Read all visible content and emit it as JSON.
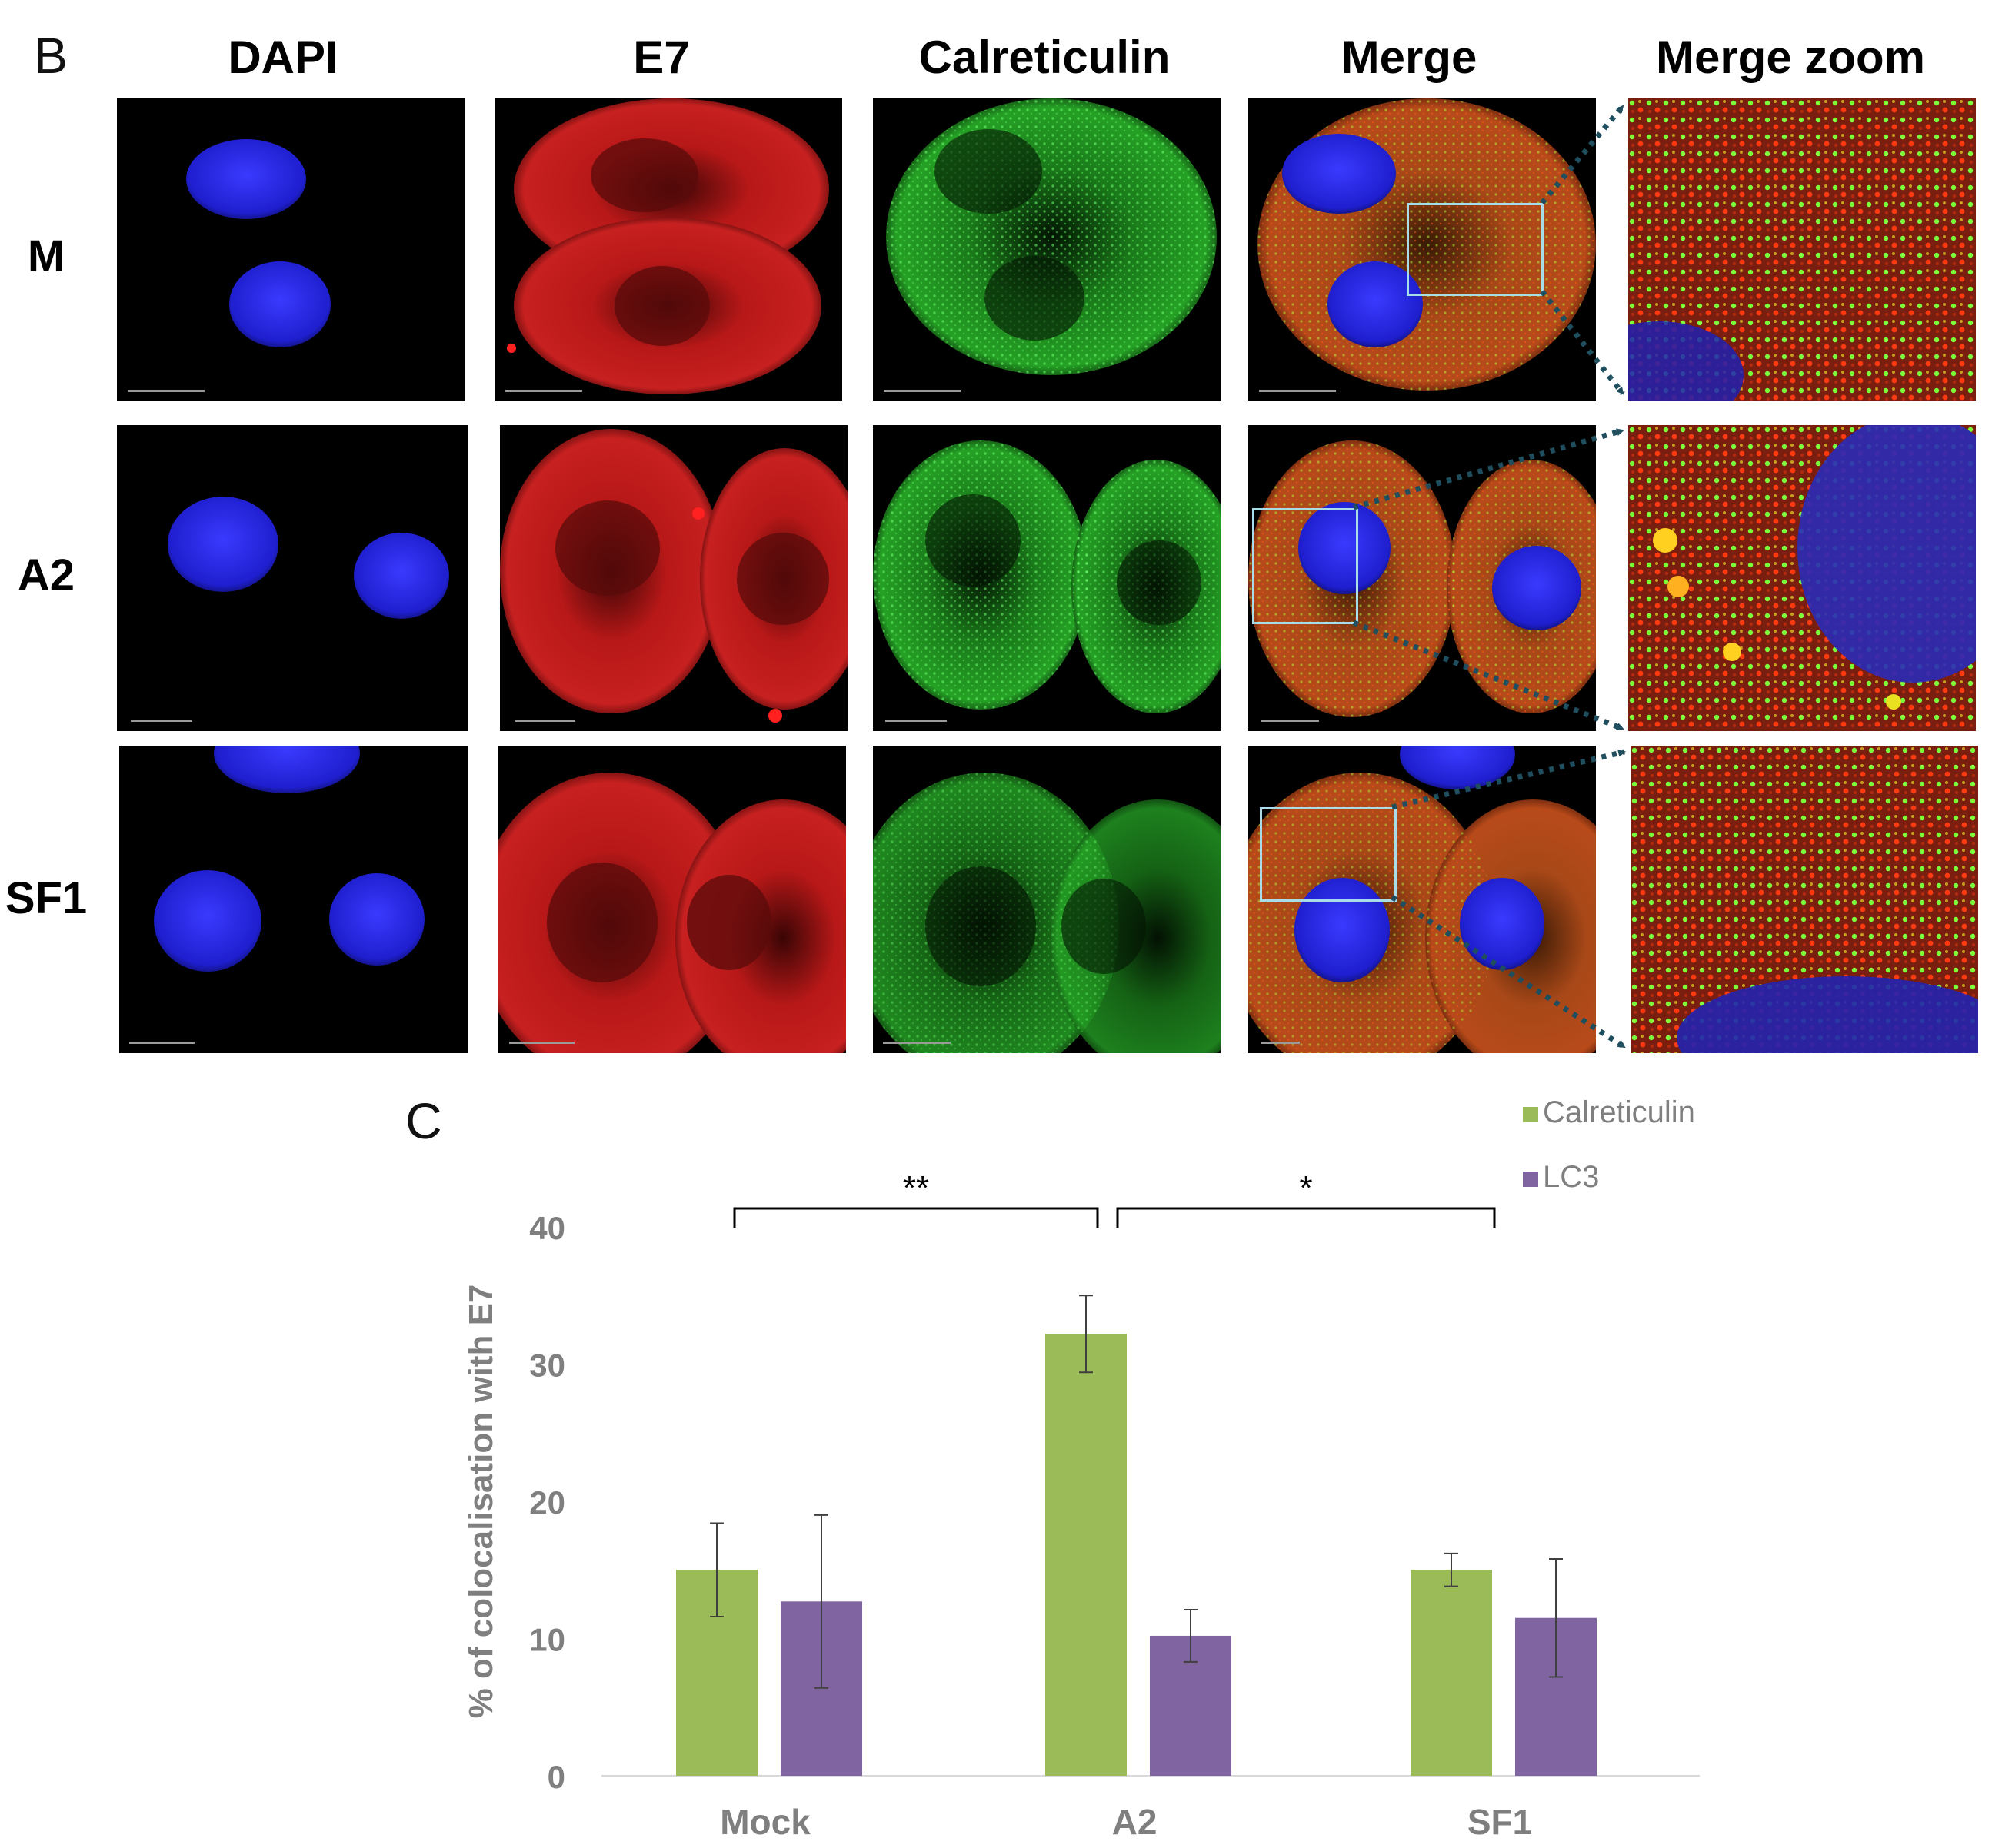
{
  "panel_b": {
    "label": "B",
    "columns": [
      "DAPI",
      "E7",
      "Calreticulin",
      "Merge",
      "Merge zoom"
    ],
    "rows": [
      "M",
      "A2",
      "SF1"
    ]
  },
  "panel_c": {
    "label": "C"
  },
  "colors": {
    "calreticulin": "#9bbb59",
    "lc3": "#8064a2",
    "axis_text": "#7f7f7f",
    "dapi": "#2a2aff",
    "e7": "#d21e1e",
    "calr_green": "#3ecf3e",
    "zoom_arrow": "#1f4e5f",
    "zoom_box": "#a8dce8"
  },
  "chart_data": {
    "type": "bar",
    "categories": [
      "Mock",
      "A2",
      "SF1"
    ],
    "series": [
      {
        "name": "Calreticulin",
        "values": [
          15.0,
          32.2,
          15.0
        ],
        "errors": [
          3.4,
          2.8,
          1.2
        ]
      },
      {
        "name": "LC3",
        "values": [
          12.7,
          10.2,
          11.5
        ],
        "errors": [
          6.3,
          1.9,
          4.3
        ]
      }
    ],
    "ylabel": "% of colocalisation  with E7",
    "xlabel": "",
    "ylim": [
      0,
      40
    ],
    "yticks": [
      0,
      10,
      20,
      30,
      40
    ],
    "legend_position": "top-right",
    "significance": [
      {
        "from": "Mock",
        "to": "A2",
        "label": "**"
      },
      {
        "from": "A2",
        "to": "SF1",
        "label": "*"
      }
    ]
  }
}
